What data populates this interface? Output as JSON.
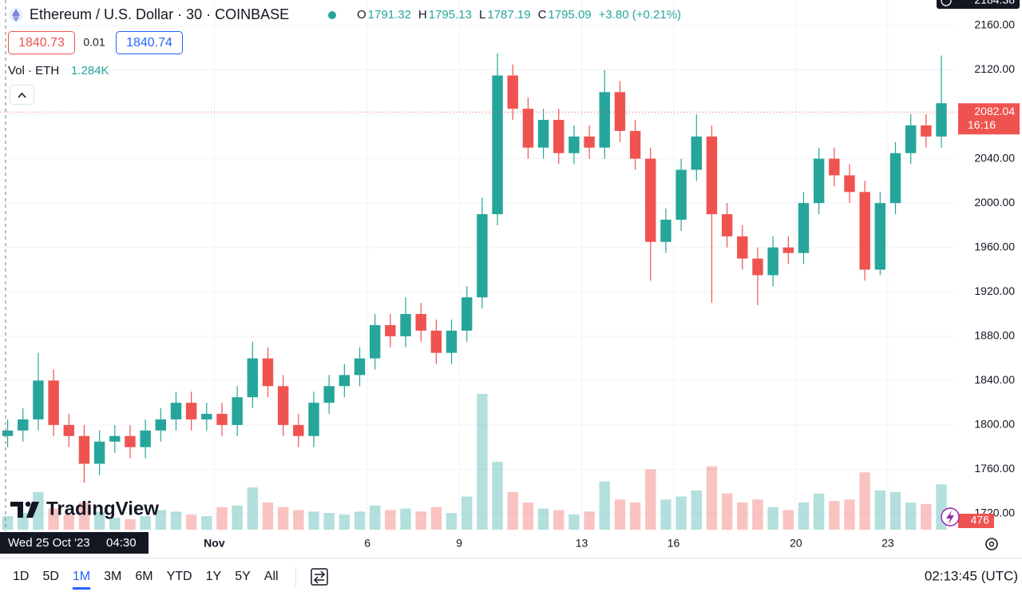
{
  "header": {
    "title": "Ethereum / U.S. Dollar · 30 · COINBASE",
    "ohlc": [
      {
        "label": "O",
        "value": 1791.32
      },
      {
        "label": "H",
        "value": 1795.13
      },
      {
        "label": "L",
        "value": 1787.19
      },
      {
        "label": "C",
        "value": 1795.09
      }
    ],
    "change": "+3.80 (+0.21%)",
    "sell": "1840.73",
    "spread": "0.01",
    "buy": "1840.74",
    "volume_title": "Vol · ETH",
    "volume_value": "1.284K"
  },
  "chart_data": {
    "type": "candlestick",
    "x": [
      "2023-10-25T00:00",
      "2023-10-25T12:00",
      "2023-10-26T00:00",
      "2023-10-26T12:00",
      "2023-10-27T00:00",
      "2023-10-27T12:00",
      "2023-10-28T00:00",
      "2023-10-28T12:00",
      "2023-10-29T00:00",
      "2023-10-29T12:00",
      "2023-10-30T00:00",
      "2023-10-30T12:00",
      "2023-10-31T00:00",
      "2023-10-31T12:00",
      "2023-11-01T00:00",
      "2023-11-01T12:00",
      "2023-11-02T00:00",
      "2023-11-02T12:00",
      "2023-11-03T00:00",
      "2023-11-03T12:00",
      "2023-11-04T00:00",
      "2023-11-04T12:00",
      "2023-11-05T00:00",
      "2023-11-05T12:00",
      "2023-11-06T00:00",
      "2023-11-06T12:00",
      "2023-11-07T00:00",
      "2023-11-07T12:00",
      "2023-11-08T00:00",
      "2023-11-08T12:00",
      "2023-11-09T00:00",
      "2023-11-09T12:00",
      "2023-11-10T00:00",
      "2023-11-10T12:00",
      "2023-11-11T00:00",
      "2023-11-11T12:00",
      "2023-11-12T00:00",
      "2023-11-12T12:00",
      "2023-11-13T00:00",
      "2023-11-13T12:00",
      "2023-11-14T00:00",
      "2023-11-14T12:00",
      "2023-11-15T00:00",
      "2023-11-15T12:00",
      "2023-11-16T00:00",
      "2023-11-16T12:00",
      "2023-11-17T00:00",
      "2023-11-17T12:00",
      "2023-11-18T00:00",
      "2023-11-18T12:00",
      "2023-11-19T00:00",
      "2023-11-19T12:00",
      "2023-11-20T00:00",
      "2023-11-20T12:00",
      "2023-11-21T00:00",
      "2023-11-21T12:00",
      "2023-11-22T00:00",
      "2023-11-22T12:00",
      "2023-11-23T00:00",
      "2023-11-23T12:00",
      "2023-11-24T00:00",
      "2023-11-24T12:00"
    ],
    "open": [
      1790,
      1795,
      1805,
      1840,
      1800,
      1790,
      1765,
      1785,
      1790,
      1780,
      1795,
      1805,
      1820,
      1805,
      1810,
      1800,
      1825,
      1860,
      1835,
      1800,
      1790,
      1820,
      1835,
      1845,
      1860,
      1890,
      1880,
      1900,
      1885,
      1865,
      1885,
      1915,
      1990,
      2115,
      2085,
      2050,
      2075,
      2045,
      2060,
      2050,
      2100,
      2065,
      2040,
      1965,
      1985,
      2030,
      2060,
      1990,
      1970,
      1950,
      1935,
      1960,
      1955,
      2000,
      2040,
      2025,
      2010,
      1940,
      2000,
      2045,
      2070,
      2060
    ],
    "high": [
      1805,
      1815,
      1865,
      1850,
      1810,
      1800,
      1795,
      1800,
      1800,
      1805,
      1815,
      1830,
      1830,
      1820,
      1820,
      1835,
      1875,
      1870,
      1845,
      1810,
      1830,
      1845,
      1855,
      1870,
      1900,
      1900,
      1915,
      1910,
      1895,
      1895,
      1925,
      2005,
      2135,
      2125,
      2095,
      2085,
      2085,
      2070,
      2070,
      2120,
      2110,
      2075,
      2050,
      1995,
      2040,
      2080,
      2070,
      2000,
      1980,
      1960,
      1970,
      1970,
      2010,
      2050,
      2050,
      2035,
      2020,
      2010,
      2055,
      2080,
      2080,
      2133
    ],
    "low": [
      1780,
      1785,
      1795,
      1790,
      1780,
      1748,
      1755,
      1775,
      1770,
      1770,
      1785,
      1795,
      1795,
      1795,
      1790,
      1790,
      1815,
      1825,
      1790,
      1780,
      1780,
      1810,
      1825,
      1835,
      1850,
      1870,
      1870,
      1875,
      1855,
      1855,
      1875,
      1905,
      1980,
      2075,
      2040,
      2040,
      2035,
      2035,
      2040,
      2040,
      2055,
      2030,
      1930,
      1955,
      1975,
      2020,
      1910,
      1960,
      1940,
      1908,
      1925,
      1945,
      1945,
      1990,
      2015,
      2000,
      1930,
      1935,
      1990,
      2035,
      2050,
      2050
    ],
    "close": [
      1795,
      1805,
      1840,
      1800,
      1790,
      1765,
      1785,
      1790,
      1780,
      1795,
      1805,
      1820,
      1805,
      1810,
      1800,
      1825,
      1860,
      1835,
      1800,
      1790,
      1820,
      1835,
      1845,
      1860,
      1890,
      1880,
      1900,
      1885,
      1865,
      1885,
      1915,
      1990,
      2115,
      2085,
      2050,
      2075,
      2045,
      2060,
      2050,
      2100,
      2065,
      2040,
      1965,
      1985,
      2030,
      2060,
      1990,
      1970,
      1950,
      1935,
      1960,
      1955,
      2000,
      2040,
      2025,
      2010,
      1940,
      2000,
      2045,
      2070,
      2060,
      2090
    ],
    "volume": [
      900,
      1100,
      2500,
      1400,
      1000,
      1800,
      1200,
      800,
      700,
      900,
      1300,
      1200,
      1000,
      900,
      1500,
      1600,
      2800,
      1800,
      1500,
      1300,
      1200,
      1100,
      1000,
      1200,
      1600,
      1300,
      1400,
      1200,
      1500,
      1100,
      2200,
      9000,
      4500,
      2500,
      1800,
      1400,
      1300,
      1000,
      1200,
      3200,
      2000,
      1800,
      4000,
      2000,
      2200,
      2600,
      4200,
      2400,
      1800,
      2000,
      1500,
      1300,
      1800,
      2400,
      1900,
      2000,
      3800,
      2600,
      2500,
      1800,
      1700,
      3000
    ],
    "up_color": "#26a69a",
    "down_color": "#ef5350",
    "xlim": [
      "2023-10-25T00:00",
      "2023-11-25T04:00"
    ],
    "xticks": [
      {
        "value": "2023-11-01T00:00",
        "label": "Nov"
      },
      {
        "value": "2023-11-06T00:00",
        "label": "6"
      },
      {
        "value": "2023-11-09T00:00",
        "label": "9"
      },
      {
        "value": "2023-11-13T00:00",
        "label": "13"
      },
      {
        "value": "2023-11-16T00:00",
        "label": "16"
      },
      {
        "value": "2023-11-20T00:00",
        "label": "20"
      },
      {
        "value": "2023-11-23T00:00",
        "label": "23"
      }
    ],
    "ylim": [
      1710,
      2160
    ],
    "yticks": [
      {
        "value": 2160,
        "label": "2160.00"
      },
      {
        "value": 2120,
        "label": "2120.00"
      },
      {
        "value": 2080,
        "label": "2080.00"
      },
      {
        "value": 2040,
        "label": "2040.00"
      },
      {
        "value": 2000,
        "label": "2000.00"
      },
      {
        "value": 1960,
        "label": "1960.00"
      },
      {
        "value": 1920,
        "label": "1920.00"
      },
      {
        "value": 1880,
        "label": "1880.00"
      },
      {
        "value": 1840,
        "label": "1840.00"
      },
      {
        "value": 1800,
        "label": "1800.00"
      },
      {
        "value": 1760,
        "label": "1760.00"
      },
      {
        "value": 1720,
        "label": "1720.00"
      }
    ],
    "grid": true,
    "last_price": 2082.04,
    "countdown": "16:16",
    "volume_label": 476,
    "top_label": "2184.38",
    "crosshair_date": "Wed 25 Oct '23",
    "crosshair_time": "04:30"
  },
  "toolbar": {
    "ranges": [
      "1D",
      "5D",
      "1M",
      "3M",
      "6M",
      "YTD",
      "1Y",
      "5Y",
      "All"
    ],
    "active": "1M",
    "clock": "02:13:45 (UTC)"
  },
  "logo": "TradingView"
}
